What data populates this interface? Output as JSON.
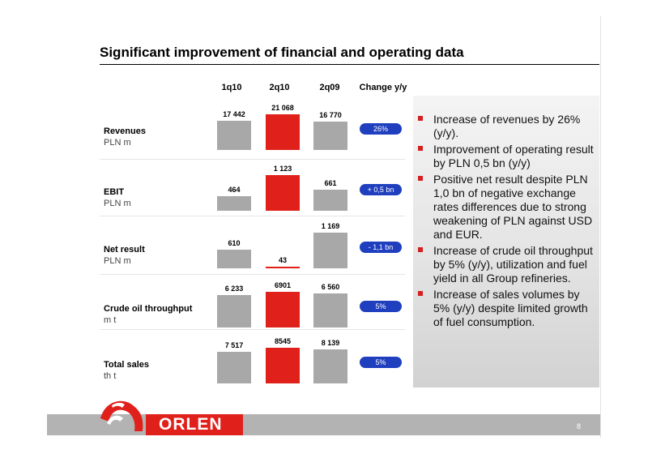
{
  "title": "Significant improvement of financial and operating data",
  "columns": [
    "1q10",
    "2q10",
    "2q09",
    "Change y/y"
  ],
  "chart_data": [
    {
      "type": "bar",
      "name": "Revenues",
      "unit": "PLN m",
      "categories": [
        "1q10",
        "2q10",
        "2q09"
      ],
      "values": [
        17442,
        21068,
        16770
      ],
      "labels": [
        "17 442",
        "21 068",
        "16 770"
      ],
      "change": "26%"
    },
    {
      "type": "bar",
      "name": "EBIT",
      "unit": "PLN m",
      "categories": [
        "1q10",
        "2q10",
        "2q09"
      ],
      "values": [
        464,
        1123,
        661
      ],
      "labels": [
        "464",
        "1 123",
        "661"
      ],
      "change": "+ 0,5 bn"
    },
    {
      "type": "bar",
      "name": "Net result",
      "unit": "PLN m",
      "categories": [
        "1q10",
        "2q10",
        "2q09"
      ],
      "values": [
        610,
        43,
        1169
      ],
      "labels": [
        "610",
        "43",
        "1 169"
      ],
      "change": "- 1,1 bn"
    },
    {
      "type": "bar",
      "name": "Crude oil throughput",
      "unit": "m t",
      "categories": [
        "1q10",
        "2q10",
        "2q09"
      ],
      "values": [
        6233,
        6901,
        6560
      ],
      "labels": [
        "6 233",
        "6901",
        "6 560"
      ],
      "change": "5%"
    },
    {
      "type": "bar",
      "name": "Total sales",
      "unit": "th t",
      "categories": [
        "1q10",
        "2q10",
        "2q09"
      ],
      "values": [
        7517,
        8545,
        8139
      ],
      "labels": [
        "7 517",
        "8545",
        "8 139"
      ],
      "change": "5%"
    }
  ],
  "bullets": [
    "Increase of revenues by 26% (y/y).",
    "Improvement of operating result by PLN 0,5 bn (y/y)",
    "Positive net result despite PLN 1,0 bn of negative exchange rates differences due to strong weakening of PLN against USD and EUR.",
    "Increase of crude oil throughput by 5% (y/y), utilization and  fuel yield in all Group refineries.",
    "Increase of sales volumes by 5% (y/y) despite limited growth of fuel consumption."
  ],
  "footer": {
    "logo": "ORLEN",
    "page": "8"
  },
  "colors": {
    "accent_red": "#e0201a",
    "bar_grey": "#a8a8a8",
    "pill_blue": "#1f3fbf"
  }
}
